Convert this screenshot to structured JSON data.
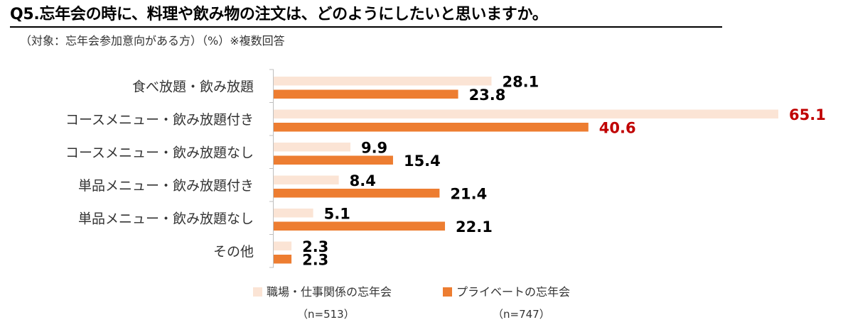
{
  "title": "Q5.忘年会の時に、料理や飲み物の注文は、どのようにしたいと思いますか。",
  "subtitle": "（対象：忘年会参加意向がある方）（%）※複数回答",
  "colors": {
    "series1": "#fbe4d5",
    "series2": "#ed7d31",
    "highlight": "#c00000",
    "axis": "#bfbfbf"
  },
  "legend": [
    {
      "label": "職場・仕事関係の忘年会",
      "n": "（n=513）"
    },
    {
      "label": "プライベートの忘年会",
      "n": "（n=747）"
    }
  ],
  "chart_data": {
    "type": "bar",
    "orientation": "horizontal",
    "categories": [
      "食べ放題・飲み放題",
      "コースメニュー・飲み放題付き",
      "コースメニュー・飲み放題なし",
      "単品メニュー・飲み放題付き",
      "単品メニュー・飲み放題なし",
      "その他"
    ],
    "series": [
      {
        "name": "職場・仕事関係の忘年会",
        "values": [
          28.1,
          65.1,
          9.9,
          8.4,
          5.1,
          2.3
        ]
      },
      {
        "name": "プライベートの忘年会",
        "values": [
          23.8,
          40.6,
          15.4,
          21.4,
          22.1,
          2.3
        ]
      }
    ],
    "highlighted_category": "コースメニュー・飲み放題付き",
    "xlim": [
      0,
      65.1
    ],
    "grid": false,
    "legend_position": "bottom"
  }
}
